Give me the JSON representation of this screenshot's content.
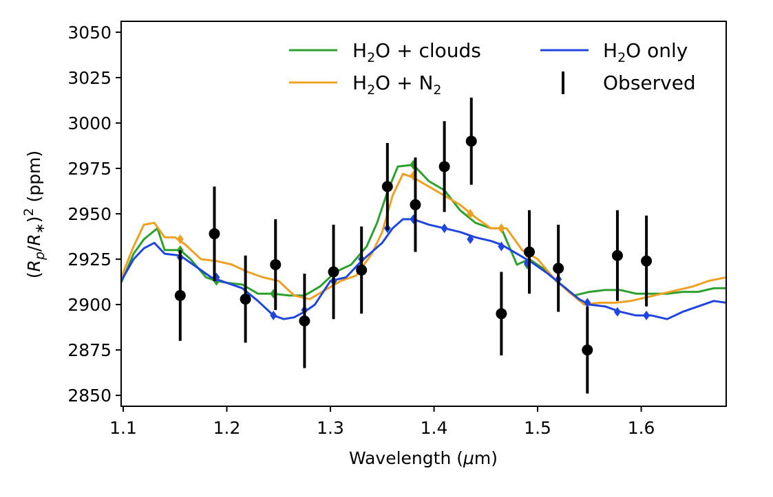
{
  "chart_data": {
    "type": "line",
    "title": "",
    "xlabel": "Wavelength (μm)",
    "ylabel": "(R_p/R_*)^2 (ppm)",
    "xlim": [
      1.098,
      1.682
    ],
    "ylim": [
      2844,
      3056
    ],
    "xticks": [
      1.1,
      1.2,
      1.3,
      1.4,
      1.5,
      1.6
    ],
    "xtick_labels": [
      "1.1",
      "1.2",
      "1.3",
      "1.4",
      "1.5",
      "1.6"
    ],
    "yticks": [
      2850,
      2875,
      2900,
      2925,
      2950,
      2975,
      3000,
      3025,
      3050
    ],
    "ytick_labels": [
      "2850",
      "2875",
      "2900",
      "2925",
      "2950",
      "2975",
      "3000",
      "3025",
      "3050"
    ],
    "grid": false,
    "legend_position": "top-right",
    "legend": [
      {
        "label_main": "H",
        "label_sub": "2",
        "label_rest": "O + clouds",
        "series": "h2o_clouds"
      },
      {
        "label_main": "H",
        "label_sub": "2",
        "label_rest": "O only",
        "series": "h2o_only"
      },
      {
        "label_main": "H",
        "label_sub": "2",
        "label_rest": "O + N",
        "label_sub2": "2",
        "series": "h2o_n2"
      },
      {
        "label_main": "Observed",
        "series": "observed"
      }
    ],
    "series": [
      {
        "id": "h2o_clouds",
        "color": "#2ca02c",
        "x": [
          1.098,
          1.11,
          1.12,
          1.133,
          1.14,
          1.155,
          1.165,
          1.18,
          1.19,
          1.2,
          1.215,
          1.23,
          1.245,
          1.26,
          1.275,
          1.29,
          1.305,
          1.32,
          1.335,
          1.345,
          1.355,
          1.365,
          1.38,
          1.395,
          1.41,
          1.425,
          1.44,
          1.455,
          1.465,
          1.48,
          1.492,
          1.505,
          1.52,
          1.535,
          1.55,
          1.565,
          1.58,
          1.595,
          1.61,
          1.625,
          1.64,
          1.655,
          1.67,
          1.682
        ],
        "y": [
          2912,
          2928,
          2936,
          2942,
          2930,
          2930,
          2925,
          2915,
          2913,
          2912,
          2911,
          2906,
          2906,
          2905,
          2905,
          2910,
          2918,
          2922,
          2932,
          2945,
          2962,
          2976,
          2977,
          2968,
          2963,
          2952,
          2945,
          2942,
          2942,
          2922,
          2925,
          2920,
          2912,
          2905,
          2907,
          2908,
          2908,
          2906,
          2906,
          2906,
          2907,
          2907,
          2909,
          2909
        ],
        "markers_x": [
          1.155,
          1.19,
          1.245,
          1.303,
          1.38,
          1.465,
          1.49
        ],
        "markers_y": [
          2930,
          2913,
          2906,
          2917,
          2977,
          2942,
          2922
        ]
      },
      {
        "id": "h2o_n2",
        "color": "#f0a020",
        "x": [
          1.098,
          1.11,
          1.12,
          1.13,
          1.14,
          1.15,
          1.16,
          1.175,
          1.19,
          1.205,
          1.22,
          1.235,
          1.25,
          1.265,
          1.28,
          1.295,
          1.31,
          1.325,
          1.34,
          1.35,
          1.36,
          1.37,
          1.38,
          1.395,
          1.41,
          1.425,
          1.44,
          1.455,
          1.47,
          1.485,
          1.5,
          1.515,
          1.53,
          1.545,
          1.56,
          1.575,
          1.59,
          1.605,
          1.62,
          1.635,
          1.65,
          1.665,
          1.682
        ],
        "y": [
          2915,
          2932,
          2944,
          2945,
          2937,
          2937,
          2933,
          2925,
          2924,
          2922,
          2918,
          2915,
          2913,
          2905,
          2903,
          2908,
          2913,
          2916,
          2928,
          2940,
          2960,
          2972,
          2970,
          2965,
          2960,
          2955,
          2948,
          2942,
          2942,
          2930,
          2925,
          2915,
          2907,
          2900,
          2901,
          2901,
          2902,
          2904,
          2906,
          2908,
          2910,
          2913,
          2915
        ],
        "markers_x": [
          1.155,
          1.38,
          1.435,
          1.465,
          1.49
        ],
        "markers_y": [
          2936,
          2971,
          2950,
          2942,
          2928
        ]
      },
      {
        "id": "h2o_only",
        "color": "#1f45e0",
        "x": [
          1.098,
          1.11,
          1.12,
          1.13,
          1.14,
          1.155,
          1.17,
          1.185,
          1.2,
          1.215,
          1.23,
          1.245,
          1.255,
          1.265,
          1.275,
          1.285,
          1.3,
          1.315,
          1.33,
          1.34,
          1.35,
          1.36,
          1.37,
          1.38,
          1.395,
          1.41,
          1.425,
          1.44,
          1.455,
          1.465,
          1.48,
          1.495,
          1.51,
          1.525,
          1.54,
          1.55,
          1.565,
          1.58,
          1.595,
          1.61,
          1.625,
          1.64,
          1.655,
          1.67,
          1.682
        ],
        "y": [
          2913,
          2925,
          2931,
          2934,
          2928,
          2927,
          2921,
          2915,
          2912,
          2909,
          2902,
          2894,
          2892,
          2893,
          2896,
          2900,
          2913,
          2915,
          2924,
          2929,
          2934,
          2942,
          2947,
          2947,
          2944,
          2942,
          2940,
          2937,
          2935,
          2933,
          2928,
          2923,
          2917,
          2910,
          2903,
          2900,
          2899,
          2896,
          2894,
          2894,
          2892,
          2896,
          2899,
          2902,
          2901
        ],
        "markers_x": [
          1.155,
          1.19,
          1.245,
          1.275,
          1.303,
          1.33,
          1.355,
          1.38,
          1.41,
          1.435,
          1.465,
          1.49,
          1.52,
          1.548,
          1.577,
          1.605
        ],
        "markers_y": [
          2926,
          2915,
          2894,
          2897,
          2913,
          2925,
          2942,
          2947,
          2942,
          2936,
          2932,
          2923,
          2914,
          2901,
          2896,
          2894
        ]
      }
    ],
    "observed": {
      "color": "#000000",
      "x": [
        1.155,
        1.188,
        1.218,
        1.247,
        1.275,
        1.303,
        1.33,
        1.355,
        1.382,
        1.41,
        1.436,
        1.465,
        1.492,
        1.52,
        1.548,
        1.577,
        1.605
      ],
      "y": [
        2905,
        2939,
        2903,
        2922,
        2891,
        2918,
        2919,
        2965,
        2955,
        2976,
        2990,
        2895,
        2929,
        2920,
        2875,
        2927,
        2924
      ],
      "err": [
        25,
        26,
        24,
        25,
        26,
        26,
        24,
        24,
        26,
        25,
        24,
        23,
        23,
        24,
        24,
        25,
        25
      ]
    }
  }
}
